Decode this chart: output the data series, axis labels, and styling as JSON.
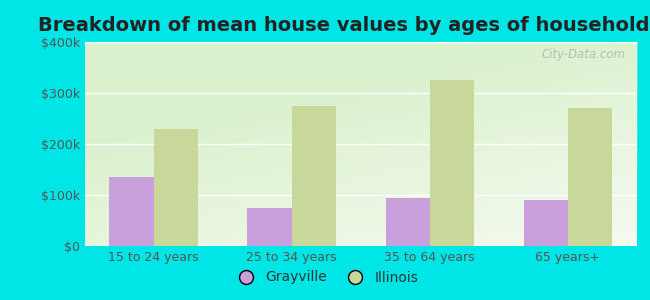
{
  "title": "Breakdown of mean house values by ages of householders",
  "categories": [
    "15 to 24 years",
    "25 to 34 years",
    "35 to 64 years",
    "65 years+"
  ],
  "grayville_values": [
    135000,
    75000,
    95000,
    90000
  ],
  "illinois_values": [
    230000,
    275000,
    325000,
    270000
  ],
  "grayville_color": "#c9a0dc",
  "illinois_color": "#c8d89a",
  "background_color": "#00e5e5",
  "ylim": [
    0,
    400000
  ],
  "yticks": [
    0,
    100000,
    200000,
    300000,
    400000
  ],
  "ytick_labels": [
    "$0",
    "$100k",
    "$200k",
    "$300k",
    "$400k"
  ],
  "bar_width": 0.32,
  "legend_labels": [
    "Grayville",
    "Illinois"
  ],
  "watermark": "City-Data.com",
  "title_fontsize": 14,
  "tick_fontsize": 9,
  "legend_fontsize": 10
}
